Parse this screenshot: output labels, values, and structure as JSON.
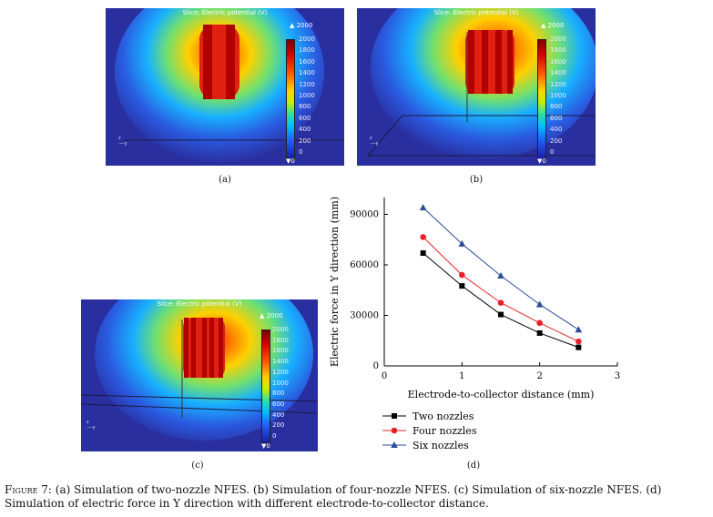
{
  "panels": [
    {
      "id": "a",
      "slice_title": "Slice: Electric potential (V)",
      "max_label": "▲ 2000",
      "min_label": "▼0",
      "label": "(a)",
      "nozzles": 2
    },
    {
      "id": "b",
      "slice_title": "Slice: Electric potential (V)",
      "max_label": "▲ 2000",
      "min_label": "▼0",
      "label": "(b)",
      "nozzles": 4
    },
    {
      "id": "c",
      "slice_title": "Slice: Electric potential (V)",
      "max_label": "▲ 2000",
      "min_label": "▼0",
      "label": "(c)",
      "nozzles": 6
    }
  ],
  "colorbar_ticks": [
    "2000",
    "1800",
    "1600",
    "1400",
    "1200",
    "1000",
    "800",
    "600",
    "400",
    "200",
    "0"
  ],
  "axis_triad": {
    "z": "z",
    "y": "y",
    "x": "x"
  },
  "chart_label": "(d)",
  "caption": {
    "figure": "Figure 7:",
    "text": " (a) Simulation of two-nozzle NFES. (b) Simulation of four-nozzle NFES. (c) Simulation of six-nozzle NFES. (d) Simulation of electric force in Y direction with different electrode-to-collector distance."
  },
  "chart_data": {
    "type": "line",
    "xlabel": "Electrode-to-collector distance (mm)",
    "ylabel": "Electric force in Y direction (mm)",
    "xlim": [
      0,
      3
    ],
    "ylim": [
      0,
      100000
    ],
    "xticks": [
      0,
      1,
      2,
      3
    ],
    "yticks": [
      0,
      30000,
      60000,
      90000
    ],
    "grid": false,
    "legend": "bottom-left",
    "x": [
      0.5,
      1.0,
      1.5,
      2.0,
      2.5
    ],
    "series": [
      {
        "name": "Two nozzles",
        "marker": "square",
        "color": "#000000",
        "values": [
          67000,
          47500,
          30500,
          19500,
          11000
        ]
      },
      {
        "name": "Four nozzles",
        "marker": "circle",
        "color": "#e8202a",
        "values": [
          76500,
          54000,
          37500,
          25500,
          14500
        ]
      },
      {
        "name": "Six nozzles",
        "marker": "triangle",
        "color": "#2a4a9a",
        "values": [
          94000,
          72500,
          53500,
          36500,
          21500
        ]
      }
    ]
  }
}
